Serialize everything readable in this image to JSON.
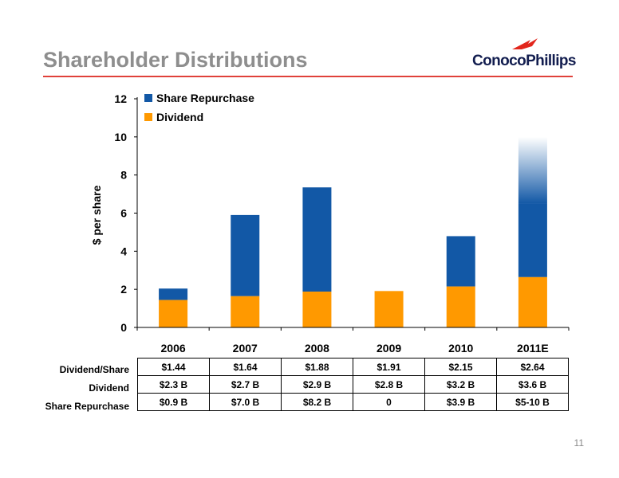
{
  "slide": {
    "title": "Shareholder Distributions",
    "logo_text": "ConocoPhillips",
    "page_number": "11"
  },
  "colors": {
    "title": "#8e8e8e",
    "accent_rule": "#e0413a",
    "share_repurchase": "#1258a6",
    "dividend": "#ff9900",
    "logo_red": "#e2261c",
    "logo_navy": "#121d4f"
  },
  "chart_data": {
    "type": "bar",
    "stacked": true,
    "categories": [
      "2006",
      "2007",
      "2008",
      "2009",
      "2010",
      "2011E"
    ],
    "series": [
      {
        "name": "Dividend",
        "values": [
          1.44,
          1.64,
          1.88,
          1.91,
          2.15,
          2.64
        ]
      },
      {
        "name": "Share Repurchase",
        "values": [
          0.6,
          4.26,
          5.47,
          0,
          2.64,
          3.86
        ]
      }
    ],
    "range_extension": {
      "category": "2011E",
      "series": "Share Repurchase",
      "upper_total": 10.0,
      "style": "gradient"
    },
    "ylabel": "$ per share",
    "xlabel": "",
    "ylim": [
      0,
      12
    ],
    "yticks": [
      "0",
      "2",
      "4",
      "6",
      "8",
      "10",
      "12"
    ],
    "legend": [
      "Share Repurchase",
      "Dividend"
    ],
    "legend_position": "top-left",
    "grid": false
  },
  "table": {
    "rows": [
      {
        "label": "Dividend/Share",
        "cells": [
          "$1.44",
          "$1.64",
          "$1.88",
          "$1.91",
          "$2.15",
          "$2.64"
        ]
      },
      {
        "label": "Dividend",
        "cells": [
          "$2.3 B",
          "$2.7 B",
          "$2.9 B",
          "$2.8 B",
          "$3.2 B",
          "$3.6 B"
        ]
      },
      {
        "label": "Share Repurchase",
        "cells": [
          "$0.9 B",
          "$7.0 B",
          "$8.2 B",
          "0",
          "$3.9 B",
          "$5-10 B"
        ]
      }
    ]
  }
}
